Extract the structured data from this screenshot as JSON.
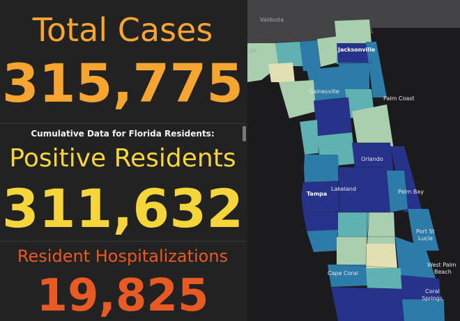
{
  "stats": {
    "total_cases_label": "Total Cases",
    "total_cases_value": "315,775",
    "cumulative_note": "Cumulative Data for Florida Residents:",
    "positive_residents_label": "Positive Residents",
    "positive_residents_value": "311,632",
    "hospitalizations_label": "Resident Hospitalizations",
    "hospitalizations_value": "19,825"
  },
  "map": {
    "cities": {
      "valdosta": "Valdosta",
      "jacksonville": "Jacksonville",
      "gainesville": "Gainesville",
      "palm_coast": "Palm Coast",
      "orlando": "Orlando",
      "tampa": "Tampa",
      "lakeland": "Lakeland",
      "palm_bay": "Palm Bay",
      "port_st_lucie_1": "Port St",
      "port_st_lucie_2": "Lucie",
      "west_palm_1": "West Palm",
      "west_palm_2": "Beach",
      "cape_coral": "Cape Coral",
      "coral_springs_1": "Coral",
      "coral_springs_2": "Springs",
      "da": "DA"
    },
    "colors": {
      "land": "#444446",
      "water": "#1b1b1d",
      "low": "#e2dfb2",
      "mid_low": "#a9cfaf",
      "mid": "#5fb1b2",
      "mid_high": "#2d7ba8",
      "high": "#27328a"
    }
  }
}
